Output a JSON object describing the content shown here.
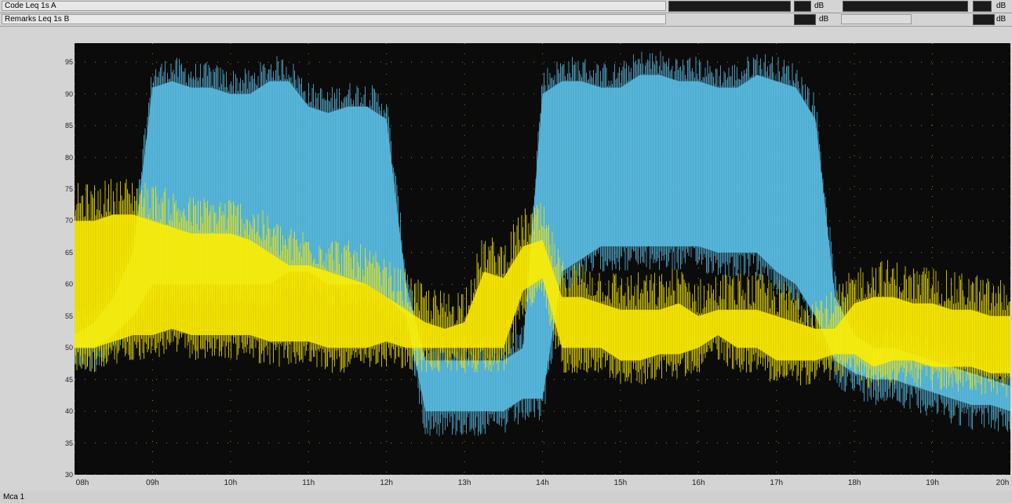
{
  "header": {
    "row1_label": "Code   Leq 1s A",
    "row2_label": "Remarks    Leq 1s  B",
    "unit1": "dB",
    "unit2": "dB",
    "unit3": "dB",
    "unit4": "dB"
  },
  "footer": {
    "label": "Mca 1"
  },
  "colors": {
    "series_a": "#ffee00",
    "series_b": "#5bbfe6",
    "background": "#0b0b0b",
    "grid": "#c8c800"
  },
  "chart_data": {
    "type": "line",
    "xlabel": "",
    "ylabel": "",
    "grid": true,
    "ylim": [
      30,
      98
    ],
    "y_ticks": [
      "30",
      "35",
      "40",
      "45",
      "50",
      "55",
      "60",
      "65",
      "70",
      "75",
      "80",
      "85",
      "90",
      "95"
    ],
    "x_ticks": [
      "08h",
      "09h",
      "10h",
      "11h",
      "12h",
      "13h",
      "14h",
      "15h",
      "16h",
      "17h",
      "18h",
      "19h",
      "20h"
    ],
    "xlim": [
      8,
      20
    ],
    "series": [
      {
        "color": "yellow",
        "x": [
          8.0,
          8.25,
          8.5,
          8.75,
          9.0,
          9.25,
          9.5,
          9.75,
          10.0,
          10.25,
          10.5,
          10.75,
          11.0,
          11.25,
          11.5,
          11.75,
          12.0,
          12.25,
          12.5,
          12.75,
          13.0,
          13.25,
          13.5,
          13.75,
          14.0,
          14.25,
          14.5,
          14.75,
          15.0,
          15.25,
          15.5,
          15.75,
          16.0,
          16.25,
          16.5,
          16.75,
          17.0,
          17.25,
          17.5,
          17.75,
          18.0,
          18.25,
          18.5,
          18.75,
          19.0,
          19.25,
          19.5,
          19.75,
          20.0
        ],
        "low": [
          50,
          50,
          51,
          52,
          52,
          53,
          52,
          52,
          52,
          52,
          51,
          51,
          51,
          50,
          50,
          50,
          51,
          50,
          50,
          50,
          50,
          50,
          50,
          59,
          61,
          50,
          50,
          50,
          48,
          48,
          49,
          49,
          50,
          52,
          50,
          50,
          48,
          48,
          48,
          49,
          49,
          47,
          48,
          48,
          47,
          47,
          47,
          46,
          46
        ],
        "high": [
          70,
          70,
          71,
          71,
          70,
          69,
          68,
          68,
          68,
          67,
          65,
          63,
          63,
          62,
          61,
          60,
          58,
          56,
          54,
          53,
          54,
          62,
          61,
          66,
          67,
          58,
          58,
          57,
          56,
          56,
          56,
          57,
          55,
          56,
          56,
          56,
          55,
          54,
          53,
          53,
          57,
          58,
          58,
          57,
          57,
          56,
          56,
          55,
          55
        ]
      },
      {
        "color": "blue",
        "x": [
          8.0,
          8.25,
          8.5,
          8.75,
          9.0,
          9.25,
          9.5,
          9.75,
          10.0,
          10.25,
          10.5,
          10.75,
          11.0,
          11.25,
          11.5,
          11.75,
          12.0,
          12.25,
          12.5,
          12.75,
          13.0,
          13.25,
          13.5,
          13.75,
          14.0,
          14.25,
          14.5,
          14.75,
          15.0,
          15.25,
          15.5,
          15.75,
          16.0,
          16.25,
          16.5,
          16.75,
          17.0,
          17.25,
          17.5,
          17.75,
          18.0,
          18.25,
          18.5,
          18.75,
          19.0,
          19.25,
          19.5,
          19.75,
          20.0
        ],
        "low": [
          50,
          50,
          52,
          55,
          60,
          60,
          60,
          60,
          60,
          60,
          60,
          62,
          62,
          60,
          60,
          60,
          58,
          55,
          40,
          40,
          40,
          40,
          40,
          42,
          42,
          62,
          64,
          66,
          66,
          66,
          66,
          66,
          66,
          65,
          65,
          65,
          62,
          60,
          55,
          48,
          46,
          45,
          45,
          44,
          43,
          42,
          41,
          41,
          40
        ],
        "high": [
          52,
          54,
          58,
          65,
          91,
          92,
          91,
          91,
          90,
          90,
          92,
          92,
          88,
          87,
          88,
          88,
          86,
          60,
          48,
          48,
          48,
          48,
          48,
          50,
          90,
          92,
          92,
          91,
          91,
          93,
          93,
          92,
          92,
          91,
          91,
          93,
          92,
          91,
          86,
          58,
          52,
          50,
          50,
          49,
          48,
          47,
          46,
          45,
          44
        ]
      }
    ]
  }
}
